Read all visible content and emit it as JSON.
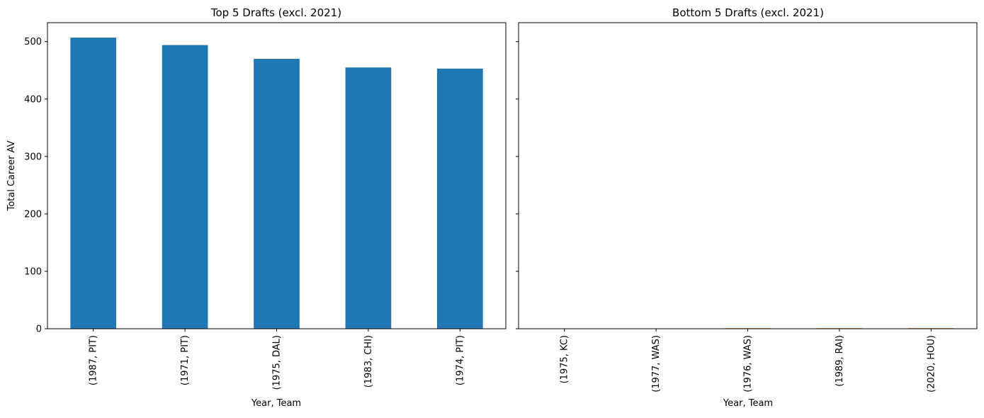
{
  "chart_data": [
    {
      "type": "bar",
      "title": "Top 5 Drafts (excl. 2021)",
      "xlabel": "Year, Team",
      "ylabel": "Total Career AV",
      "categories": [
        "(1987, PIT)",
        "(1971, PIT)",
        "(1975, DAL)",
        "(1983, CHI)",
        "(1974, PIT)"
      ],
      "values": [
        507,
        494,
        470,
        455,
        453
      ],
      "ylim": [
        0,
        533
      ],
      "yticks": [
        0,
        100,
        200,
        300,
        400,
        500
      ],
      "color": "#1f77b4",
      "grid": false
    },
    {
      "type": "bar",
      "title": "Bottom 5 Drafts (excl. 2021)",
      "xlabel": "Year, Team",
      "ylabel": "",
      "categories": [
        "(1975, KC)",
        "(1977, WAS)",
        "(1976, WAS)",
        "(1989, RAI)",
        "(2020, HOU)"
      ],
      "values": [
        0,
        0,
        1,
        1,
        1
      ],
      "ylim": [
        0,
        533
      ],
      "yticks": [
        0,
        100,
        200,
        300,
        400,
        500
      ],
      "shared_y": true,
      "color": "#ff7f0e",
      "grid": false
    }
  ]
}
